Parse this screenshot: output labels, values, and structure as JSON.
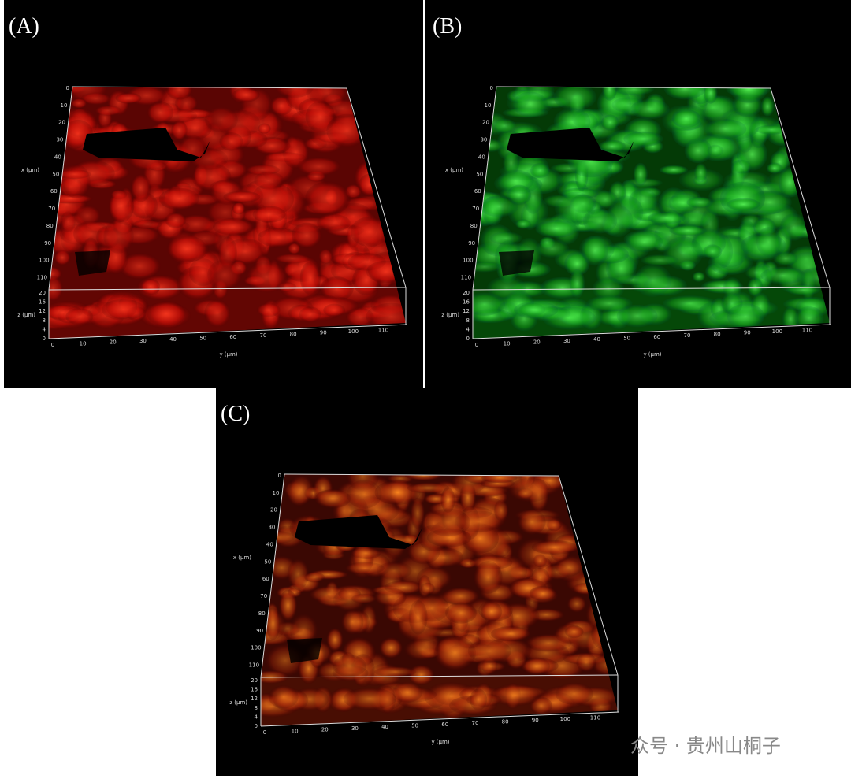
{
  "panels": [
    {
      "label": "(A)"
    },
    {
      "label": "(B)"
    },
    {
      "label": "(C)"
    }
  ],
  "axes": {
    "x_title": "x (µm)",
    "x_ticks": [
      0,
      10,
      20,
      30,
      40,
      50,
      60,
      70,
      80,
      90,
      100,
      110
    ],
    "z_title": "z (µm)",
    "z_ticks": [
      20,
      16,
      12,
      8,
      4,
      0
    ],
    "y_title": "y (µm)",
    "y_ticks": [
      0,
      10,
      20,
      30,
      40,
      50,
      60,
      70,
      80,
      90,
      100,
      110
    ]
  },
  "watermark": "众号 · 贵州山桐子"
}
